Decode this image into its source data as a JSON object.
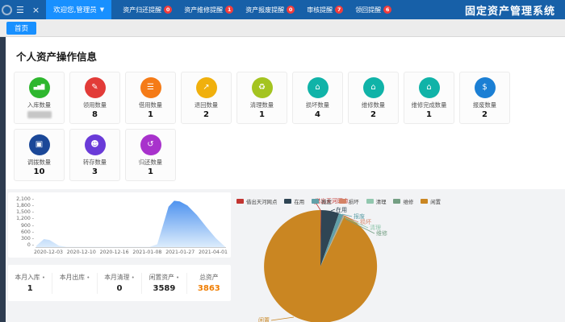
{
  "navbar": {
    "title": "固定资产管理系统",
    "user_menu": "欢迎您,管理员",
    "menu_icon": "hamburger",
    "close_icon": "close",
    "items": [
      {
        "label": "资产归还提醒",
        "badge": "0"
      },
      {
        "label": "资产维修提醒",
        "badge": "1"
      },
      {
        "label": "资产报废提醒",
        "badge": "0"
      },
      {
        "label": "审核提醒",
        "badge": "7"
      },
      {
        "label": "领回提醒",
        "badge": "6"
      }
    ],
    "badge_color": "#f23c3c",
    "bar_color": "#1760a8",
    "accent_color": "#1890ff"
  },
  "tabbar": {
    "tabs": [
      {
        "label": "首页",
        "active": true
      }
    ]
  },
  "page": {
    "heading": "个人资产操作信息"
  },
  "stat_cards": [
    {
      "label": "入库数量",
      "value": "",
      "redacted": true,
      "color": "#2eb72e",
      "icon": "bar-chart"
    },
    {
      "label": "领用数量",
      "value": "8",
      "redacted": false,
      "color": "#e23b38",
      "icon": "document"
    },
    {
      "label": "借用数量",
      "value": "1",
      "redacted": false,
      "color": "#f57b17",
      "icon": "layers"
    },
    {
      "label": "退回数量",
      "value": "2",
      "redacted": false,
      "color": "#f0b00d",
      "icon": "trend-line"
    },
    {
      "label": "清理数量",
      "value": "1",
      "redacted": false,
      "color": "#a4c420",
      "icon": "broom"
    },
    {
      "label": "损坏数量",
      "value": "4",
      "redacted": false,
      "color": "#10b3a8",
      "icon": "home"
    },
    {
      "label": "维修数量",
      "value": "2",
      "redacted": false,
      "color": "#10b3a8",
      "icon": "home"
    },
    {
      "label": "维修完成数量",
      "value": "1",
      "redacted": false,
      "color": "#10b3a8",
      "icon": "home"
    },
    {
      "label": "报废数量",
      "value": "2",
      "redacted": false,
      "color": "#1b7fd4",
      "icon": "money-bag"
    },
    {
      "label": "调拨数量",
      "value": "10",
      "redacted": false,
      "color": "#1b4898",
      "icon": "copy"
    },
    {
      "label": "转存数量",
      "value": "3",
      "redacted": false,
      "color": "#6a3bd8",
      "icon": "user"
    },
    {
      "label": "归还数量",
      "value": "1",
      "redacted": false,
      "color": "#a832cc",
      "icon": "return-arrow"
    }
  ],
  "icon_glyphs": {
    "bar-chart": "▄▆█",
    "document": "✎",
    "layers": "☰",
    "trend-line": "↗",
    "broom": "♻",
    "home": "⌂",
    "money-bag": "$",
    "copy": "▣",
    "user": "☻",
    "return-arrow": "↺"
  },
  "summary": [
    {
      "label": "本月入库",
      "value": "1",
      "highlight": false
    },
    {
      "label": "本月出库",
      "value": "",
      "highlight": false
    },
    {
      "label": "本月清理",
      "value": "0",
      "highlight": false
    },
    {
      "label": "闲置资产",
      "value": "3589",
      "highlight": false
    },
    {
      "label": "总资产",
      "value": "3863",
      "highlight": true
    }
  ],
  "chart_data": [
    {
      "type": "area",
      "title": "",
      "xlabel": "",
      "ylabel": "",
      "x_ticks": [
        "2020-12-03",
        "2020-12-10",
        "2020-12-16",
        "2021-01-08",
        "2021-01-27",
        "2021-04-01"
      ],
      "y_ticks": [
        0,
        300,
        600,
        900,
        1200,
        1500,
        1800,
        2100
      ],
      "ylim": [
        0,
        2100
      ],
      "grid": false,
      "points": [
        [
          0.0,
          60
        ],
        [
          0.04,
          340
        ],
        [
          0.07,
          300
        ],
        [
          0.12,
          60
        ],
        [
          0.16,
          10
        ],
        [
          0.3,
          6
        ],
        [
          0.5,
          6
        ],
        [
          0.6,
          8
        ],
        [
          0.64,
          120
        ],
        [
          0.67,
          900
        ],
        [
          0.7,
          1700
        ],
        [
          0.73,
          1950
        ],
        [
          0.76,
          1920
        ],
        [
          0.8,
          1750
        ],
        [
          0.85,
          1350
        ],
        [
          0.9,
          850
        ],
        [
          0.95,
          380
        ],
        [
          1.0,
          15
        ]
      ],
      "area_color_top": "#4f93ef",
      "area_color_bottom": "#dcecfc",
      "line_color": "#6aa7f0"
    },
    {
      "type": "pie",
      "title": "",
      "legend_position": "top",
      "total": 3863,
      "slices": [
        {
          "name": "借出天河网点",
          "value": 7,
          "color": "#c23531"
        },
        {
          "name": "在用",
          "value": 200,
          "color": "#2f4554"
        },
        {
          "name": "报废",
          "value": 50,
          "color": "#61a0a8"
        },
        {
          "name": "损坏",
          "value": 8,
          "color": "#d48265"
        },
        {
          "name": "清理",
          "value": 5,
          "color": "#91c7ae"
        },
        {
          "name": "维修",
          "value": 4,
          "color": "#749f83"
        },
        {
          "name": "闲置",
          "value": 3589,
          "color": "#ca8622"
        }
      ]
    }
  ]
}
